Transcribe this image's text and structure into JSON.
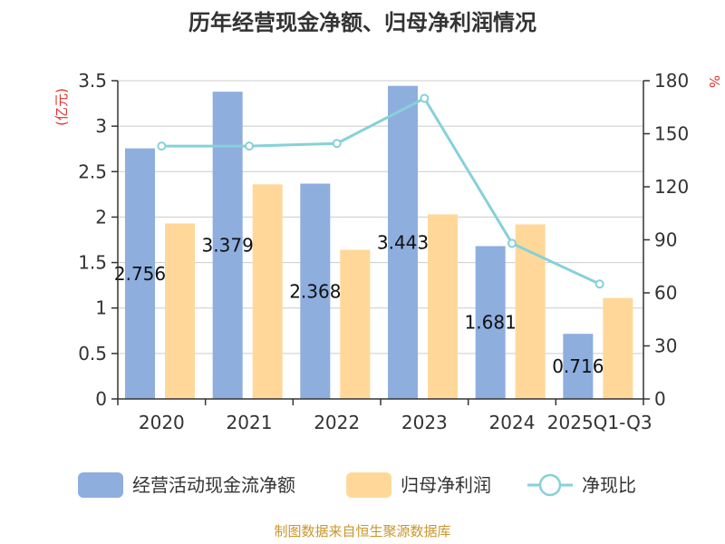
{
  "chart_data": {
    "type": "bar",
    "title": "历年经营现金净额、归母净利润情况",
    "categories": [
      "2020",
      "2021",
      "2022",
      "2023",
      "2024",
      "2025Q1-Q3"
    ],
    "series": [
      {
        "name": "经营活动现金流净额",
        "type": "bar",
        "axis": "left",
        "color": "#8eaede",
        "values": [
          2.756,
          3.379,
          2.368,
          3.443,
          1.681,
          0.716
        ],
        "data_labels": [
          "2.756",
          "3.379",
          "2.368",
          "3.443",
          "1.681",
          "0.716"
        ]
      },
      {
        "name": "归母净利润",
        "type": "bar",
        "axis": "left",
        "color": "#ffd899",
        "values": [
          1.93,
          2.36,
          1.64,
          2.03,
          1.92,
          1.11
        ]
      },
      {
        "name": "净现比",
        "type": "line",
        "axis": "right",
        "color": "#86d1d8",
        "values": [
          143,
          143,
          144.5,
          170,
          88,
          65
        ]
      }
    ],
    "y_left": {
      "unit": "(亿元)",
      "range": [
        0,
        3.5
      ],
      "ticks": [
        "0",
        "0.5",
        "1",
        "1.5",
        "2",
        "2.5",
        "3",
        "3.5"
      ]
    },
    "y_right": {
      "unit": "%",
      "range": [
        0,
        180
      ],
      "ticks": [
        "0",
        "30",
        "60",
        "90",
        "120",
        "150",
        "180"
      ]
    },
    "grid": true,
    "legend_position": "bottom"
  },
  "source": "制图数据来自恒生聚源数据库"
}
